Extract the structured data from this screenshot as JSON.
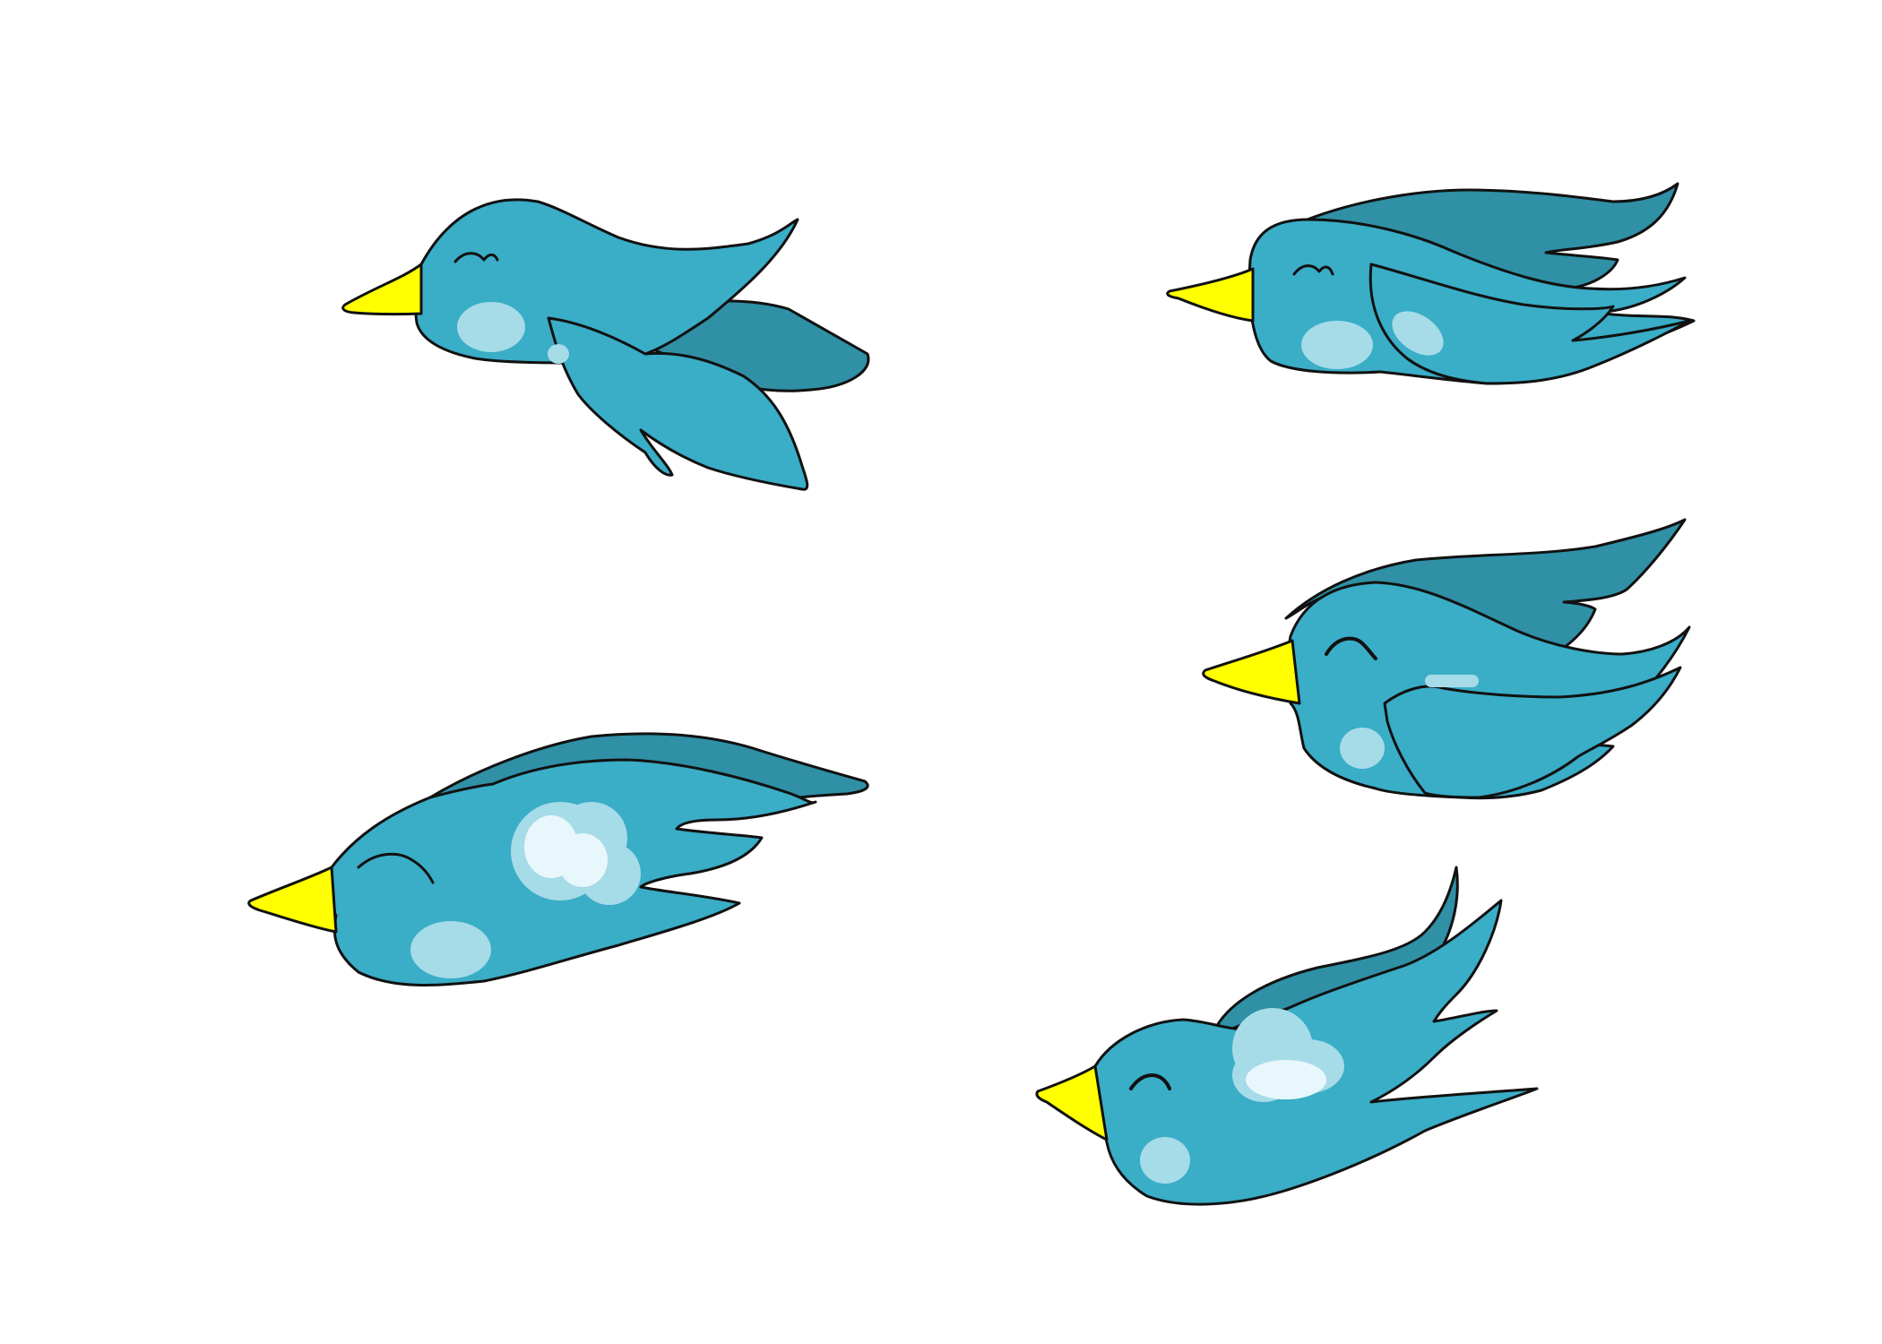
{
  "sprite_sheet": {
    "background": "#ffffff",
    "frame_count": 5,
    "palette": {
      "body": "#3aadc7",
      "back_wing": "#2f90a6",
      "beak": "#ffff00",
      "cheek": "#a6dbe8",
      "highlight": "#e8f7fb",
      "outline": "#111111"
    },
    "frames": [
      {
        "pose": "wings-down",
        "icon": "bird-icon"
      },
      {
        "pose": "wings-swept-back",
        "icon": "bird-icon"
      },
      {
        "pose": "wings-level",
        "icon": "bird-icon"
      },
      {
        "pose": "wings-half-raised",
        "icon": "bird-icon"
      },
      {
        "pose": "wings-up",
        "icon": "bird-icon"
      }
    ]
  }
}
